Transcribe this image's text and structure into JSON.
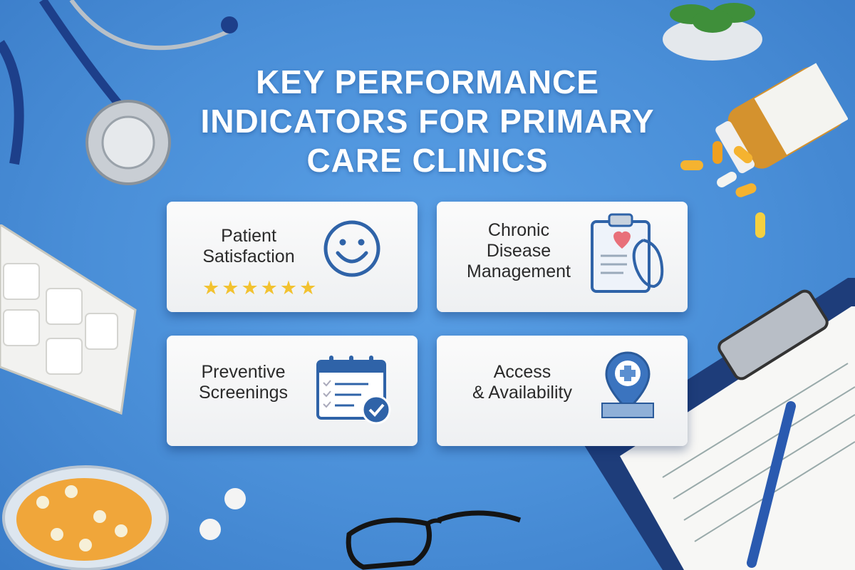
{
  "title": {
    "line1": "KEY PERFORMANCE",
    "line2": "INDICATORS FOR PRIMARY",
    "line3": "CARE CLINICS"
  },
  "cards": [
    {
      "line1": "Patient",
      "line2": "Satisfaction",
      "icon": "smiley-icon",
      "rating": 6,
      "rating_max": 6
    },
    {
      "line1": "Chronic",
      "line2": "Disease",
      "line3": "Management",
      "icon": "clipboard-heart-stethoscope-icon"
    },
    {
      "line1": "Preventive",
      "line2": "Screenings",
      "icon": "calendar-check-icon"
    },
    {
      "line1": "Access",
      "line2": "& Availability",
      "icon": "location-pin-cross-icon"
    }
  ],
  "colors": {
    "background": "#4a8fd8",
    "icon_blue": "#2f63a8",
    "star": "#f2c230",
    "heart": "#e8707a"
  }
}
